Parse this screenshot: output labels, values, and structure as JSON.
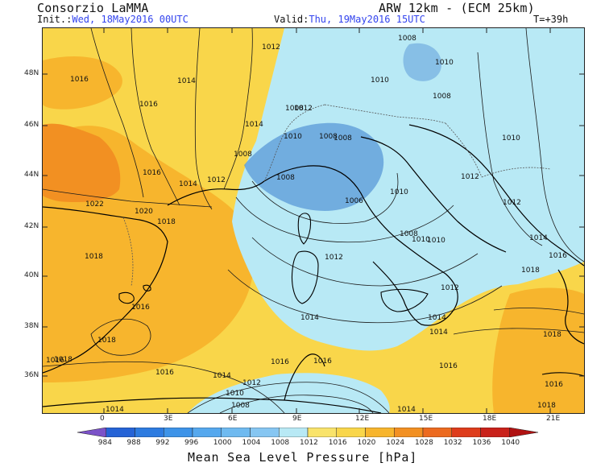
{
  "header": {
    "brand": "Consorzio LaMMA",
    "model": "ARW 12km - (ECM 25km)",
    "init_label": "Init.:",
    "init_value": "Wed, 18May2016 00UTC",
    "valid_label": "Valid:",
    "valid_value": "Thu, 19May2016 15UTC",
    "lead_time": "T=+39h"
  },
  "colors": {
    "p1008_1012": "#5e9cd8",
    "p1012_1016": "#b8e9f5",
    "p1016_1020": "#f9d64a",
    "p1020_1024": "#f7b52d",
    "p1024_1028": "#f29022",
    "frame": "#222222",
    "coast": "#000000",
    "border": "#555555"
  },
  "axes": {
    "lon_labels": [
      "0",
      "3E",
      "6E",
      "9E",
      "12E",
      "15E",
      "18E",
      "21E"
    ],
    "lat_labels": [
      "48N",
      "46N",
      "44N",
      "42N",
      "40N",
      "38N",
      "36N"
    ]
  },
  "isobar_labels": [
    {
      "text": "1012"
    },
    {
      "text": "1008"
    },
    {
      "text": "1016"
    },
    {
      "text": "1014"
    },
    {
      "text": "1016"
    },
    {
      "text": "1012"
    },
    {
      "text": "1010"
    },
    {
      "text": "1010"
    },
    {
      "text": "1014"
    },
    {
      "text": "1008"
    },
    {
      "text": "1008"
    },
    {
      "text": "1008"
    },
    {
      "text": "1010"
    },
    {
      "text": "1016"
    },
    {
      "text": "1014"
    },
    {
      "text": "1012"
    },
    {
      "text": "1008"
    },
    {
      "text": "1022"
    },
    {
      "text": "1020"
    },
    {
      "text": "1018"
    },
    {
      "text": "1006"
    },
    {
      "text": "1010"
    },
    {
      "text": "1008"
    },
    {
      "text": "1010"
    },
    {
      "text": "1018"
    },
    {
      "text": "1012"
    },
    {
      "text": "1012"
    },
    {
      "text": "1014"
    },
    {
      "text": "1016"
    },
    {
      "text": "1018"
    },
    {
      "text": "1014"
    },
    {
      "text": "1014"
    },
    {
      "text": "1018"
    },
    {
      "text": "1016"
    },
    {
      "text": "1016"
    },
    {
      "text": "1014"
    },
    {
      "text": "1016"
    },
    {
      "text": "1012"
    },
    {
      "text": "1010"
    },
    {
      "text": "1008"
    },
    {
      "text": "1016"
    },
    {
      "text": "1014"
    },
    {
      "text": "1014"
    },
    {
      "text": "1016"
    },
    {
      "text": "1016"
    },
    {
      "text": "1018"
    },
    {
      "text": "1018"
    },
    {
      "text": "1008"
    },
    {
      "text": "1008"
    },
    {
      "text": "1010"
    },
    {
      "text": "1010"
    },
    {
      "text": "1012"
    },
    {
      "text": "1012"
    },
    {
      "text": "1014"
    },
    {
      "text": "1016"
    },
    {
      "text": "1018"
    }
  ],
  "colorbar": {
    "levels": [
      "984",
      "988",
      "992",
      "996",
      "1000",
      "1004",
      "1008",
      "1012",
      "1016",
      "1020",
      "1024",
      "1028",
      "1032",
      "1036",
      "1040"
    ],
    "colors": [
      "#7b52c8",
      "#2563d6",
      "#2d7be0",
      "#3d93e8",
      "#55a8ee",
      "#6fbaf0",
      "#86c6f2",
      "#b8e9f5",
      "#f9e36a",
      "#f9d64a",
      "#f7b52d",
      "#f29022",
      "#ec6a1f",
      "#de3c1b",
      "#c9211a",
      "#b01212"
    ],
    "title": "Mean Sea Level Pressure [hPa]"
  }
}
